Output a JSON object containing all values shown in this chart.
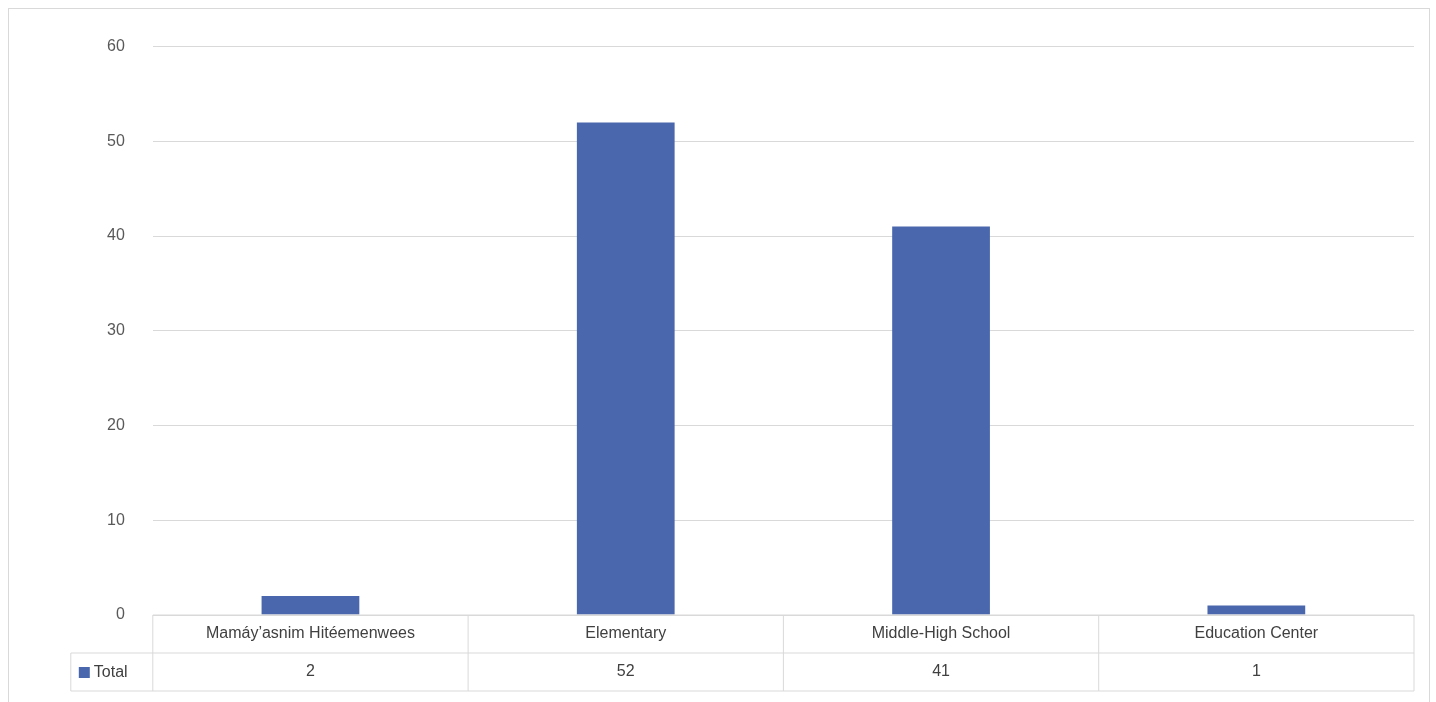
{
  "chart_data": {
    "type": "bar",
    "categories": [
      "Mamáy’asnim Hitéemenwees",
      "Elementary",
      "Middle-High School",
      "Education Center"
    ],
    "series": [
      {
        "name": "Total",
        "color": "#4a67ae",
        "values": [
          2,
          52,
          41,
          1
        ]
      }
    ],
    "ylim": [
      0,
      60
    ],
    "yticks": [
      0,
      10,
      20,
      30,
      40,
      50,
      60
    ],
    "grid": "y",
    "legend": "bottom left",
    "data_labels": true
  }
}
